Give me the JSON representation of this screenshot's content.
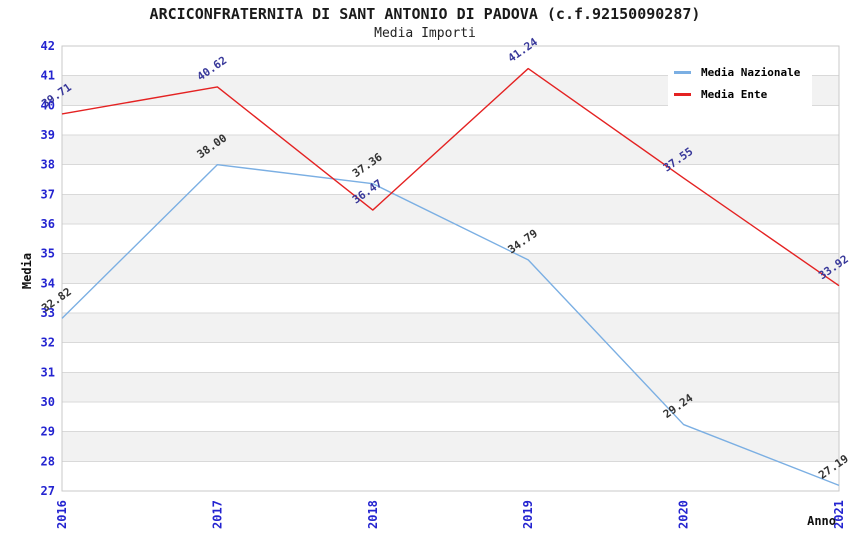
{
  "chart_data": {
    "type": "line",
    "title": "ARCICONFRATERNITA DI SANT ANTONIO DI PADOVA (c.f.92150090287)",
    "subtitle": "Media Importi",
    "xlabel": "Anno",
    "ylabel": "Media",
    "categories": [
      "2016",
      "2017",
      "2018",
      "2019",
      "2020",
      "2021"
    ],
    "series": [
      {
        "name": "Media Nazionale",
        "color": "#7bafe3",
        "label_color": "#333333",
        "values": [
          32.82,
          38.0,
          37.36,
          34.79,
          29.24,
          27.19
        ]
      },
      {
        "name": "Media Ente",
        "color": "#e42222",
        "label_color": "#38389a",
        "values": [
          39.71,
          40.62,
          36.47,
          41.24,
          37.55,
          33.92
        ]
      }
    ],
    "ylim": [
      27,
      42
    ],
    "ytick_step": 1,
    "grid": "horizontal-bands-alternating",
    "legend_position": "top-right"
  },
  "style": {
    "tick_label_color": "#2424d0",
    "band_color": "#f2f2f2",
    "grid_color": "#d9d9d9",
    "plot_border_color": "#c9c9c9",
    "background_color": "#ffffff"
  }
}
